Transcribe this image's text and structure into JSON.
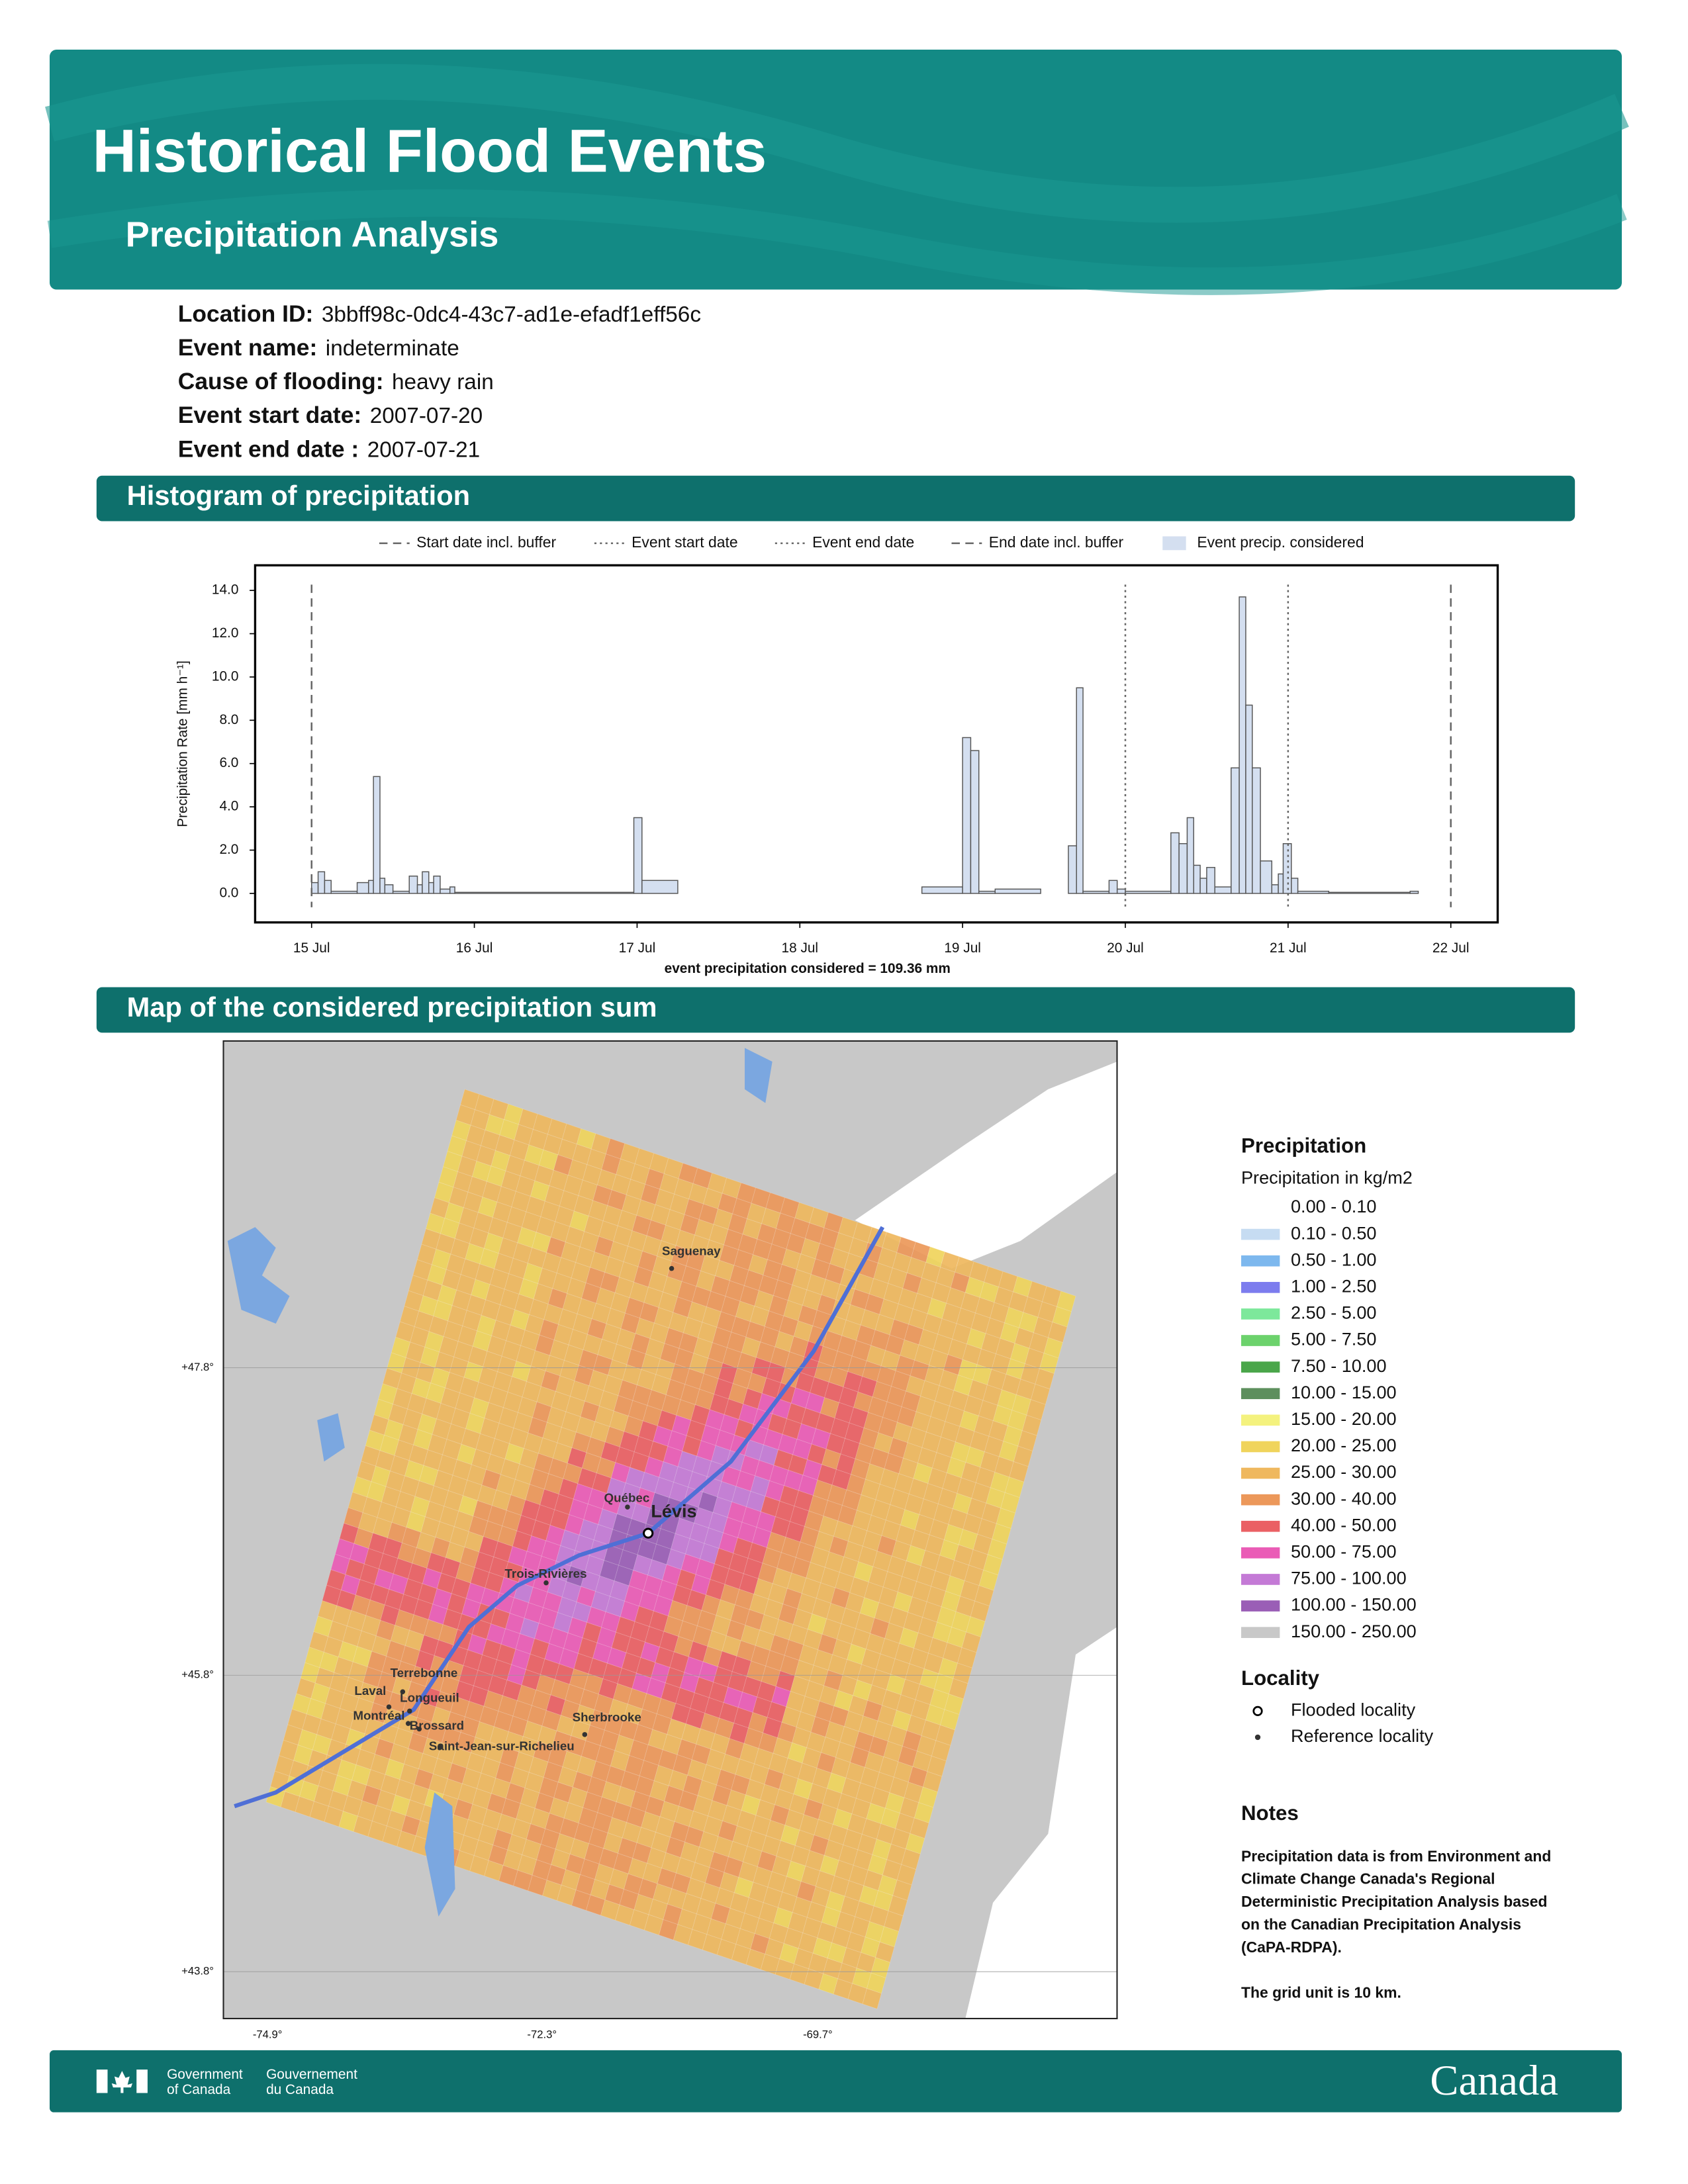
{
  "header": {
    "title": "Historical Flood Events",
    "subtitle": "Precipitation Analysis"
  },
  "event_info": [
    {
      "label": "Location ID:",
      "value": "3bbff98c-0dc4-43c7-ad1e-efadf1eff56c"
    },
    {
      "label": "Event name:",
      "value": "indeterminate"
    },
    {
      "label": "Cause of flooding:",
      "value": "heavy rain"
    },
    {
      "label": "Event start date:",
      "value": "2007-07-20"
    },
    {
      "label": "Event end date :",
      "value": "2007-07-21"
    }
  ],
  "sections": [
    "Histogram of precipitation",
    "Map of the considered precipitation sum"
  ],
  "chart_data": {
    "type": "histogram",
    "y_label": "Precipitation Rate [mm h⁻¹]",
    "annotation": "event precipitation considered = 109.36 mm",
    "bins": [
      15.0,
      15.04,
      15.08,
      15.12,
      15.28,
      15.35,
      15.38,
      15.42,
      15.45,
      15.5,
      15.6,
      15.65,
      15.68,
      15.72,
      15.75,
      15.79,
      15.85,
      15.88,
      16.98,
      17.03,
      17.25,
      18.75,
      19.0,
      19.05,
      19.1,
      19.2,
      19.48,
      19.65,
      19.7,
      19.74,
      19.9,
      19.95,
      20.0,
      20.28,
      20.33,
      20.38,
      20.42,
      20.46,
      20.5,
      20.55,
      20.65,
      20.7,
      20.74,
      20.78,
      20.83,
      20.9,
      20.94,
      20.97,
      21.02,
      21.06,
      21.25,
      21.75,
      21.8,
      22.0
    ],
    "series": [
      {
        "name": "Event precip. considered",
        "color": "#d4dff0",
        "values": [
          0.5,
          1.0,
          0.6,
          0.1,
          0.5,
          0.6,
          5.4,
          0.7,
          0.4,
          0.1,
          0.8,
          0.4,
          1.0,
          0.5,
          0.8,
          0.2,
          0.3,
          0.05,
          3.5,
          0.6,
          0.0,
          0.3,
          7.2,
          6.6,
          0.1,
          0.2,
          0.0,
          2.2,
          9.5,
          0.1,
          0.6,
          0.2,
          0.1,
          2.8,
          2.3,
          3.5,
          1.3,
          0.7,
          1.2,
          0.3,
          5.8,
          13.7,
          8.7,
          5.8,
          1.5,
          0.4,
          0.9,
          2.3,
          0.7,
          0.1,
          0.05,
          0.1,
          0.0
        ]
      }
    ],
    "vlines": [
      {
        "name": "Start date incl. buffer",
        "value": 15,
        "style": "dashed"
      },
      {
        "name": "Event start date",
        "value": 20,
        "style": "dotted"
      },
      {
        "name": "Event end date",
        "value": 21,
        "style": "dotted"
      },
      {
        "name": "End date incl. buffer",
        "value": 22,
        "style": "dashed"
      }
    ],
    "xlim": [
      14.653,
      22.288
    ],
    "xticks": [
      {
        "value": 15,
        "label": "15 Jul"
      },
      {
        "value": 16,
        "label": "16 Jul"
      },
      {
        "value": 17,
        "label": "17 Jul"
      },
      {
        "value": 18,
        "label": "18 Jul"
      },
      {
        "value": 19,
        "label": "19 Jul"
      },
      {
        "value": 20,
        "label": "20 Jul"
      },
      {
        "value": 21,
        "label": "21 Jul"
      },
      {
        "value": 22,
        "label": "22 Jul"
      }
    ],
    "ylim": [
      -1.34,
      15.16
    ],
    "yticks": [
      {
        "value": 0,
        "label": "0.0"
      },
      {
        "value": 2,
        "label": "2.0"
      },
      {
        "value": 4,
        "label": "4.0"
      },
      {
        "value": 6,
        "label": "6.0"
      },
      {
        "value": 8,
        "label": "8.0"
      },
      {
        "value": 10,
        "label": "10.0"
      },
      {
        "value": 12,
        "label": "12.0"
      },
      {
        "value": 14,
        "label": "14.0"
      }
    ]
  },
  "map": {
    "cities": [
      {
        "name": "Saguenay"
      },
      {
        "name": "Québec"
      },
      {
        "name": "Lévis",
        "flooded": true
      },
      {
        "name": "Trois-Rivières"
      },
      {
        "name": "Terrebonne"
      },
      {
        "name": "Laval"
      },
      {
        "name": "Longueuil"
      },
      {
        "name": "Montréal"
      },
      {
        "name": "Brossard"
      },
      {
        "name": "Sherbrooke"
      },
      {
        "name": "Saint-Jean-sur-Richelieu"
      }
    ],
    "lat_labels": [
      "+47.8°",
      "+45.8°",
      "+43.8°"
    ],
    "lon_labels": [
      "-74.9°",
      "-72.3°",
      "-69.7°"
    ]
  },
  "legend": {
    "title": "Precipitation",
    "subtitle": "Precipitation in kg/m2",
    "classes": [
      {
        "label": "0.00 - 0.10",
        "color": "#ffffff"
      },
      {
        "label": "0.10 - 0.50",
        "color": "#c6dcf2"
      },
      {
        "label": "0.50 - 1.00",
        "color": "#7db8ee"
      },
      {
        "label": "1.00 - 2.50",
        "color": "#7c7cee"
      },
      {
        "label": "2.50 - 5.00",
        "color": "#7de89b"
      },
      {
        "label": "5.00 - 7.50",
        "color": "#6cd26c"
      },
      {
        "label": "7.50 - 10.00",
        "color": "#4aa64a"
      },
      {
        "label": "10.00 - 15.00",
        "color": "#5d8f5d"
      },
      {
        "label": "15.00 - 20.00",
        "color": "#f4f27e"
      },
      {
        "label": "20.00 - 25.00",
        "color": "#f0d45c"
      },
      {
        "label": "25.00 - 30.00",
        "color": "#efb85e"
      },
      {
        "label": "30.00 - 40.00",
        "color": "#ec985a"
      },
      {
        "label": "40.00 - 50.00",
        "color": "#ea6064"
      },
      {
        "label": "50.00 - 75.00",
        "color": "#ea5cb6"
      },
      {
        "label": "75.00 - 100.00",
        "color": "#c47ad6"
      },
      {
        "label": "100.00 - 150.00",
        "color": "#9a5eb6"
      },
      {
        "label": "150.00 - 250.00",
        "color": "#c8c8c8"
      }
    ]
  },
  "locality": {
    "title": "Locality",
    "items": [
      "Flooded locality",
      "Reference locality"
    ]
  },
  "notes": {
    "title": "Notes",
    "paragraphs": [
      [
        "Precipitation data is from Environment and",
        "Climate Change Canada's Regional",
        "Deterministic Precipitation Analysis based",
        "on the Canadian Precipitation Analysis",
        "(CaPA-RDPA)."
      ],
      [
        "The grid unit is 10 km."
      ]
    ]
  },
  "footer": {
    "english": [
      "Government",
      "of Canada"
    ],
    "french": [
      "Gouvernement",
      "du Canada"
    ],
    "wordmark": "Canada"
  }
}
